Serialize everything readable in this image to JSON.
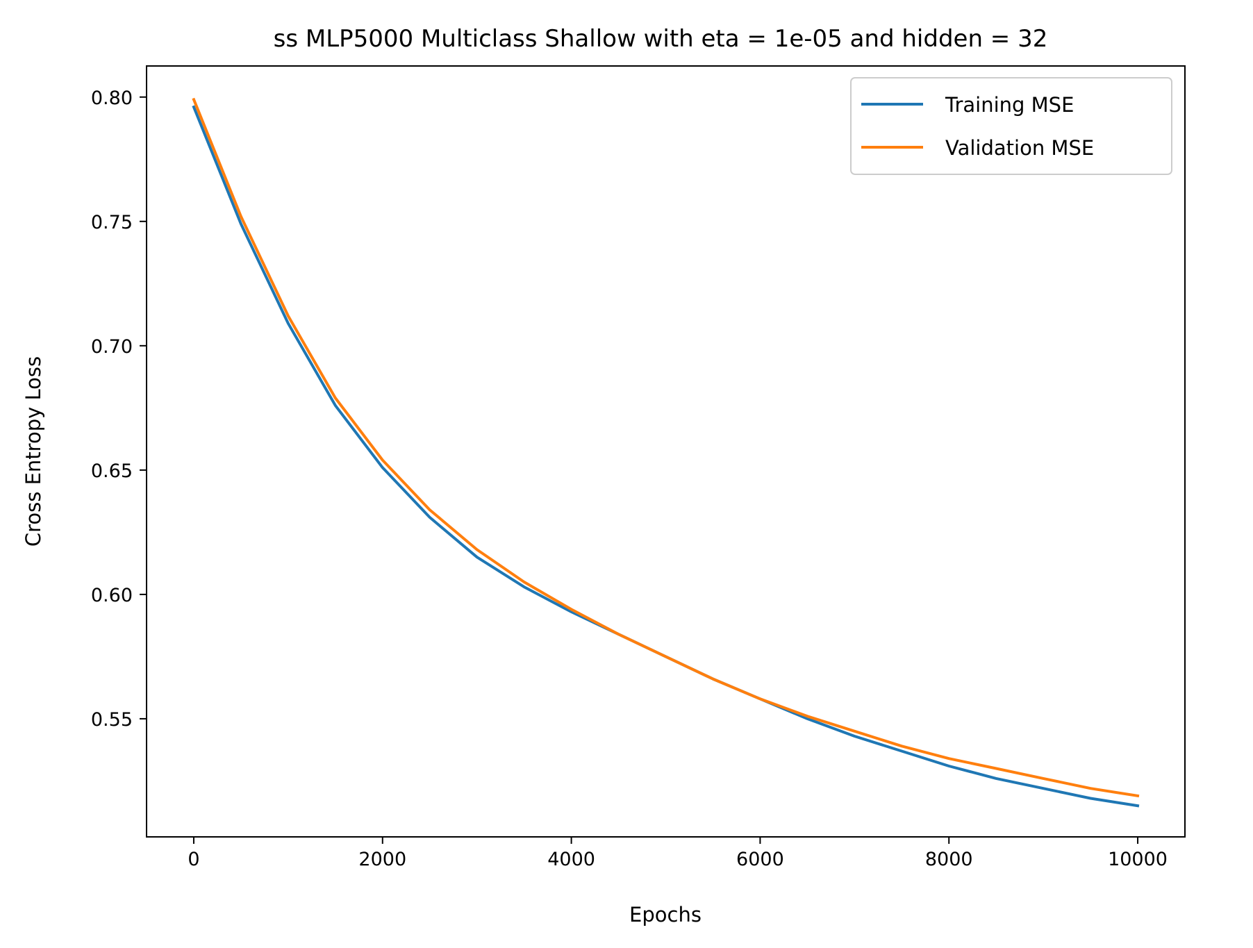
{
  "chart_data": {
    "type": "line",
    "title": "ss MLP5000 Multiclass Shallow with eta = 1e-05 and hidden = 32",
    "xlabel": "Epochs",
    "ylabel": "Cross Entropy Loss",
    "xlim": [
      -500,
      10500
    ],
    "ylim": [
      0.5025,
      0.8125
    ],
    "xticks": [
      0,
      2000,
      4000,
      6000,
      8000,
      10000
    ],
    "xtick_labels": [
      "0",
      "2000",
      "4000",
      "6000",
      "8000",
      "10000"
    ],
    "yticks": [
      0.55,
      0.6,
      0.65,
      0.7,
      0.75,
      0.8
    ],
    "ytick_labels": [
      "0.55",
      "0.60",
      "0.65",
      "0.70",
      "0.75",
      "0.80"
    ],
    "grid": false,
    "legend_position": "top-right",
    "series": [
      {
        "name": "Training MSE",
        "color": "#1f77b4",
        "x": [
          0,
          500,
          1000,
          1500,
          2000,
          2500,
          3000,
          3500,
          4000,
          4500,
          5000,
          5500,
          6000,
          6500,
          7000,
          7500,
          8000,
          8500,
          9000,
          9500,
          10000
        ],
        "y": [
          0.796,
          0.749,
          0.709,
          0.676,
          0.651,
          0.631,
          0.615,
          0.603,
          0.593,
          0.584,
          0.575,
          0.566,
          0.558,
          0.55,
          0.543,
          0.537,
          0.531,
          0.526,
          0.522,
          0.518,
          0.515
        ]
      },
      {
        "name": "Validation MSE",
        "color": "#ff7f0e",
        "x": [
          0,
          500,
          1000,
          1500,
          2000,
          2500,
          3000,
          3500,
          4000,
          4500,
          5000,
          5500,
          6000,
          6500,
          7000,
          7500,
          8000,
          8500,
          9000,
          9500,
          10000
        ],
        "y": [
          0.799,
          0.752,
          0.712,
          0.679,
          0.654,
          0.634,
          0.618,
          0.605,
          0.594,
          0.584,
          0.575,
          0.566,
          0.558,
          0.551,
          0.545,
          0.539,
          0.534,
          0.53,
          0.526,
          0.522,
          0.519
        ]
      }
    ]
  }
}
